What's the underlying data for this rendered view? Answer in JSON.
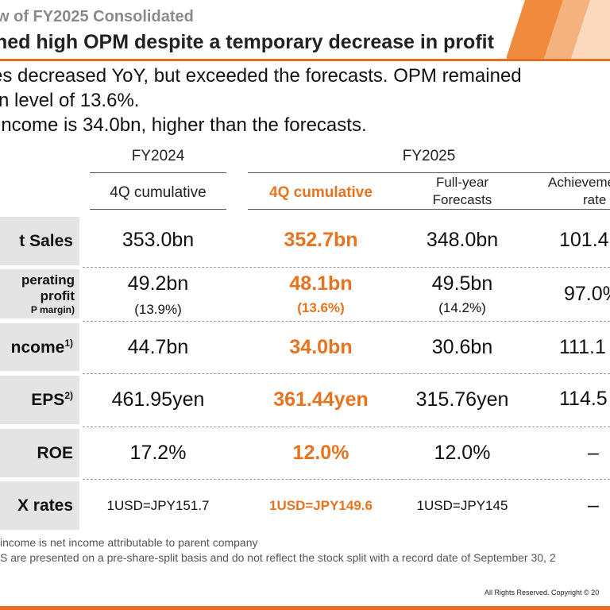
{
  "header": {
    "subtitle": "w of FY2025 Consolidated",
    "title": "ned high OPM despite a temporary decrease in profit"
  },
  "bullets": [
    "es decreased YoY, but exceeded the forecasts. OPM remained",
    "n level of 13.6%.",
    " income is 34.0bn, higher than the forecasts."
  ],
  "table": {
    "groups": {
      "fy2024": "FY2024",
      "fy2025": "FY2025"
    },
    "columns": {
      "fy2024_cum": "4Q cumulative",
      "fy2025_cum": "4Q cumulative",
      "forecast_line1": "Full-year",
      "forecast_line2": "Forecasts",
      "achieve_line1": "Achieveme",
      "achieve_line2": "rate"
    },
    "rows": {
      "net_sales": {
        "label": "t Sales",
        "fy2024": "353.0bn",
        "fy2025": "352.7bn",
        "forecast": "348.0bn",
        "achieve": "101.4"
      },
      "op_profit": {
        "label1": "perating",
        "label2": "profit",
        "label3": "P margin)",
        "fy2024": "49.2bn",
        "fy2024_margin": "(13.9%)",
        "fy2025": "48.1bn",
        "fy2025_margin": "(13.6%)",
        "forecast": "49.5bn",
        "forecast_margin": "(14.2%)",
        "achieve": "97.0%"
      },
      "net_income": {
        "label": "ncome",
        "sup": "1)",
        "fy2024": "44.7bn",
        "fy2025": "34.0bn",
        "forecast": "30.6bn",
        "achieve": "111.1"
      },
      "eps": {
        "label": "EPS",
        "sup": "2)",
        "fy2024": "461.95yen",
        "fy2025": "361.44yen",
        "forecast": "315.76yen",
        "achieve": "114.5"
      },
      "roe": {
        "label": "ROE",
        "fy2024": "17.2%",
        "fy2025": "12.0%",
        "forecast": "12.0%",
        "achieve": "–"
      },
      "fx": {
        "label": "X rates",
        "fy2024": "1USD=JPY151.7",
        "fy2025": "1USD=JPY149.6",
        "forecast": "1USD=JPY145",
        "achieve": "–"
      }
    }
  },
  "footnotes": [
    " income is net income attributable to parent company",
    "S are presented on a pre-share-split basis and do not reflect the stock split with a record date of September 30, 2"
  ],
  "copyright": "All Rights Reserved. Copyright © 20",
  "colors": {
    "accent": "#e8731f",
    "label_bg": "#e4e4e4"
  }
}
